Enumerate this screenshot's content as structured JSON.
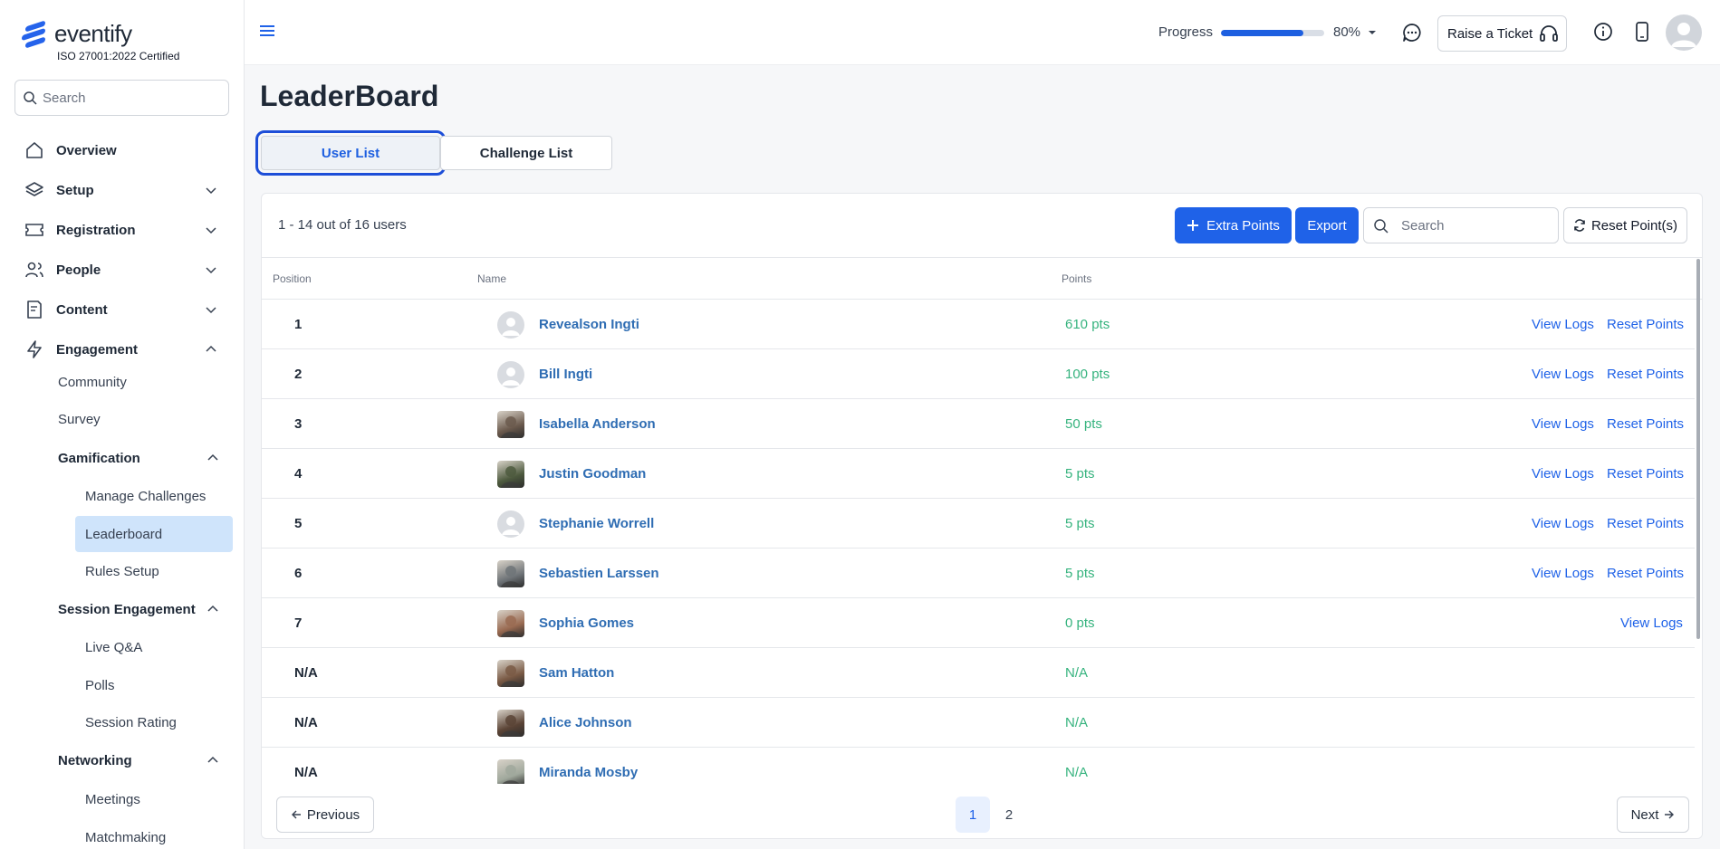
{
  "sidebar": {
    "brand": "eventify",
    "certification": "ISO 27001:2022 Certified",
    "search_placeholder": "Search",
    "nav": [
      {
        "label": "Overview",
        "icon": "home-icon"
      },
      {
        "label": "Setup",
        "icon": "layers-icon"
      },
      {
        "label": "Registration",
        "icon": "ticket-icon"
      },
      {
        "label": "People",
        "icon": "people-icon"
      },
      {
        "label": "Content",
        "icon": "document-icon"
      },
      {
        "label": "Engagement",
        "icon": "lightning-icon"
      }
    ],
    "engagement_items": {
      "community": "Community",
      "survey": "Survey",
      "gamification": "Gamification",
      "manage_challenges": "Manage Challenges",
      "leaderboard": "Leaderboard",
      "rules_setup": "Rules Setup",
      "session_engagement": "Session Engagement",
      "live_qa": "Live Q&A",
      "polls": "Polls",
      "session_rating": "Session Rating",
      "networking": "Networking",
      "meetings": "Meetings",
      "matchmaking": "Matchmaking"
    }
  },
  "topbar": {
    "progress_label": "Progress",
    "progress_value": 0.8,
    "progress_text": "80%",
    "ticket_label": "Raise a Ticket"
  },
  "page": {
    "title": "LeaderBoard",
    "tabs": [
      "User List",
      "Challenge List"
    ]
  },
  "toolbar": {
    "count_text": "1 - 14 out of 16 users",
    "extra_points_label": "Extra Points",
    "export_label": "Export",
    "search_placeholder": "Search",
    "reset_label": "Reset Point(s)"
  },
  "table": {
    "headers": {
      "position": "Position",
      "name": "Name",
      "points": "Points"
    },
    "view_logs": "View Logs",
    "reset_points": "Reset Points",
    "rows": [
      {
        "position": "1",
        "name": "Revealson Ingti",
        "points": "610 pts",
        "avatar": "default",
        "reset": true,
        "logs": true
      },
      {
        "position": "2",
        "name": "Bill Ingti",
        "points": "100 pts",
        "avatar": "default",
        "reset": true,
        "logs": true
      },
      {
        "position": "3",
        "name": "Isabella Anderson",
        "points": "50 pts",
        "avatar": "photo",
        "tone": "#6b5a4d",
        "reset": true,
        "logs": true
      },
      {
        "position": "4",
        "name": "Justin Goodman",
        "points": "5 pts",
        "avatar": "photo",
        "tone": "#4d5a3e",
        "reset": true,
        "logs": true
      },
      {
        "position": "5",
        "name": "Stephanie Worrell",
        "points": "5 pts",
        "avatar": "default",
        "reset": true,
        "logs": true
      },
      {
        "position": "6",
        "name": "Sebastien Larssen",
        "points": "5 pts",
        "avatar": "photo",
        "tone": "#6f7478",
        "reset": true,
        "logs": true
      },
      {
        "position": "7",
        "name": "Sophia Gomes",
        "points": "0 pts",
        "avatar": "photo",
        "tone": "#9a6b52",
        "reset": false,
        "logs": true
      },
      {
        "position": "N/A",
        "name": "Sam Hatton",
        "points": "N/A",
        "avatar": "photo",
        "tone": "#7a5a45",
        "reset": false,
        "logs": false
      },
      {
        "position": "N/A",
        "name": "Alice Johnson",
        "points": "N/A",
        "avatar": "photo",
        "tone": "#5b4436",
        "reset": false,
        "logs": false
      },
      {
        "position": "N/A",
        "name": "Miranda Mosby",
        "points": "N/A",
        "avatar": "photo",
        "tone": "#a0a89c",
        "reset": false,
        "logs": false
      }
    ]
  },
  "pagination": {
    "previous": "Previous",
    "next": "Next",
    "pages": [
      "1",
      "2"
    ],
    "current": "1"
  },
  "colors": {
    "accent": "#1f62e8",
    "points_green": "#36b37e",
    "name_blue": "#2f6db3"
  }
}
